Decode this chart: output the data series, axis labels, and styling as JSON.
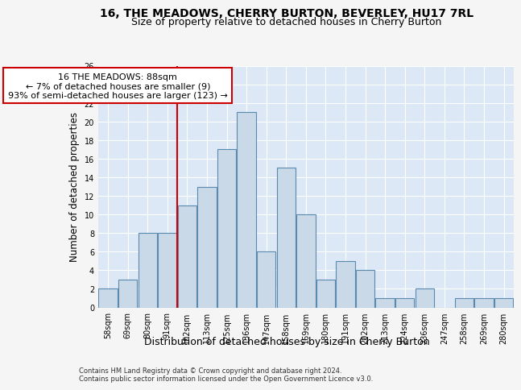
{
  "title": "16, THE MEADOWS, CHERRY BURTON, BEVERLEY, HU17 7RL",
  "subtitle": "Size of property relative to detached houses in Cherry Burton",
  "xlabel": "Distribution of detached houses by size in Cherry Burton",
  "ylabel": "Number of detached properties",
  "categories": [
    "58sqm",
    "69sqm",
    "80sqm",
    "91sqm",
    "102sqm",
    "113sqm",
    "125sqm",
    "136sqm",
    "147sqm",
    "158sqm",
    "169sqm",
    "180sqm",
    "191sqm",
    "202sqm",
    "213sqm",
    "224sqm",
    "236sqm",
    "247sqm",
    "258sqm",
    "269sqm",
    "280sqm"
  ],
  "values": [
    2,
    3,
    8,
    8,
    11,
    13,
    17,
    21,
    6,
    15,
    10,
    3,
    5,
    4,
    1,
    1,
    2,
    0,
    1,
    1,
    1
  ],
  "bar_color": "#c9d9e8",
  "bar_edge_color": "#5a8ab0",
  "subject_line_color": "#cc0000",
  "annotation_text": "16 THE MEADOWS: 88sqm\n← 7% of detached houses are smaller (9)\n93% of semi-detached houses are larger (123) →",
  "annotation_box_color": "#ffffff",
  "annotation_box_edge": "#cc0000",
  "ylim": [
    0,
    26
  ],
  "yticks": [
    0,
    2,
    4,
    6,
    8,
    10,
    12,
    14,
    16,
    18,
    20,
    22,
    24,
    26
  ],
  "footer1": "Contains HM Land Registry data © Crown copyright and database right 2024.",
  "footer2": "Contains public sector information licensed under the Open Government Licence v3.0.",
  "background_color": "#dce8f5",
  "grid_color": "#ffffff",
  "title_fontsize": 10,
  "subtitle_fontsize": 9,
  "tick_fontsize": 7,
  "ylabel_fontsize": 8.5,
  "xlabel_fontsize": 9,
  "annotation_fontsize": 8
}
